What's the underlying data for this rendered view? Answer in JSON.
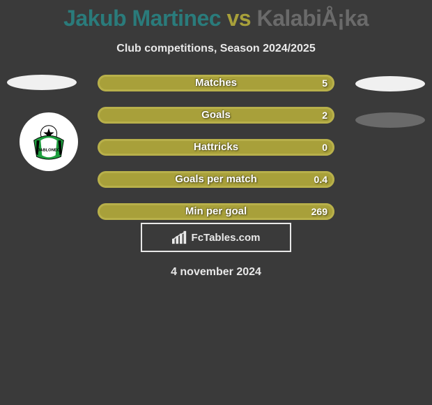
{
  "title": {
    "text_player1": "Jakub Martinec",
    "text_vs": " vs ",
    "text_player2": "KalabiÅ¡ka",
    "color_player1": "#2a7b7b",
    "color_vs": "#a8a03a",
    "color_player2": "#6a6a6a"
  },
  "subtitle": "Club competitions, Season 2024/2025",
  "colors": {
    "background": "#3a3a3a",
    "bar_fill": "#a8a03a",
    "bar_border": "#b8b04a",
    "bar_track": "#6a6a6a",
    "text_light": "#e8e8e8",
    "ellipse_light": "#f0f0f0",
    "ellipse_dark": "#6a6a6a"
  },
  "bars": [
    {
      "label": "Matches",
      "value": "5",
      "fill_pct": 100
    },
    {
      "label": "Goals",
      "value": "2",
      "fill_pct": 100
    },
    {
      "label": "Hattricks",
      "value": "0",
      "fill_pct": 100
    },
    {
      "label": "Goals per match",
      "value": "0.4",
      "fill_pct": 100
    },
    {
      "label": "Min per goal",
      "value": "269",
      "fill_pct": 100
    }
  ],
  "brand": "FcTables.com",
  "date": "4 november 2024",
  "club_crest": {
    "name": "JABLONEC",
    "primary": "#1e9e3e",
    "secondary": "#000000",
    "tertiary": "#ffffff"
  }
}
